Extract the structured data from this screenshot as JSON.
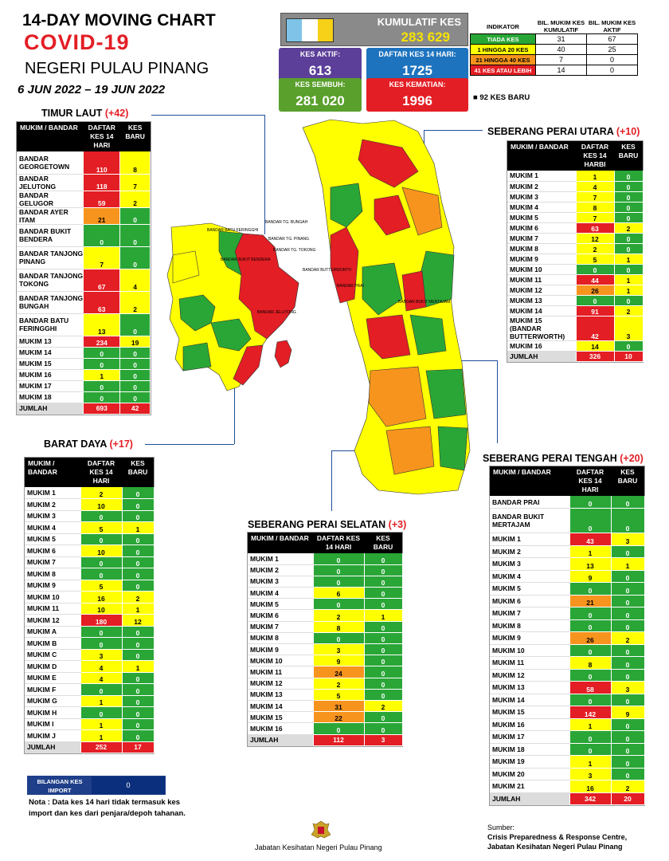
{
  "header": {
    "title_line1": "14-DAY MOVING CHART",
    "title_line2": "COVID-19",
    "state": "NEGERI PULAU PINANG",
    "date_range": "6 JUN 2022 – 19 JUN 2022"
  },
  "summary": {
    "kumulatif_label": "KUMULATIF KES",
    "kumulatif_value": "283 629",
    "aktif_label": "KES AKTIF:",
    "aktif_value": "613",
    "daftar14_label": "DAFTAR KES 14 HARI:",
    "daftar14_value": "1725",
    "sembuh_label": "KES SEMBUH:",
    "sembuh_value": "281 020",
    "kematian_label": "KES KEMATIAN:",
    "kematian_value": "1996"
  },
  "indicator": {
    "header_label": "INDIKATOR",
    "col1": "BIL. MUKIM KES KUMULATIF",
    "col2": "BIL. MUKIM KES AKTIF",
    "rows": [
      {
        "label": "TIADA KES",
        "color": "#2aa637",
        "text_color": "#ffffff",
        "kumulatif": "31",
        "aktif": "67"
      },
      {
        "label": "1 HINGGA 20 KES",
        "color": "#ffff00",
        "text_color": "#000000",
        "kumulatif": "40",
        "aktif": "25"
      },
      {
        "label": "21 HINGGA 40 KES",
        "color": "#f7941d",
        "text_color": "#000000",
        "kumulatif": "7",
        "aktif": "0"
      },
      {
        "label": "41 KES ATAU LEBIH",
        "color": "#e31e24",
        "text_color": "#ffffff",
        "kumulatif": "14",
        "aktif": "0"
      }
    ],
    "new_cases": "92 KES BARU"
  },
  "columns": {
    "mukim": "MUKIM / BANDAR",
    "daftar": "DAFTAR KES 14 HARI",
    "daftar_spu": "DAFTAR KES 14 HARBI",
    "baru": "KES BARU"
  },
  "regions": {
    "timur_laut": {
      "name": "TIMUR LAUT",
      "count": "(+42)",
      "rows": [
        [
          "BANDAR GEORGETOWN",
          "110",
          "8"
        ],
        [
          "BANDAR JELUTONG",
          "118",
          "7"
        ],
        [
          "BANDAR GELUGOR",
          "59",
          "2"
        ],
        [
          "BANDAR AYER ITAM",
          "21",
          "0"
        ],
        [
          "BANDAR BUKIT BENDERA",
          "0",
          "0"
        ],
        [
          "BANDAR TANJONG PINANG",
          "7",
          "0"
        ],
        [
          "BANDAR TANJONG TOKONG",
          "67",
          "4"
        ],
        [
          "BANDAR TANJONG BUNGAH",
          "63",
          "2"
        ],
        [
          "BANDAR BATU FERINGGHI",
          "13",
          "0"
        ],
        [
          "MUKIM 13",
          "234",
          "19"
        ],
        [
          "MUKIM 14",
          "0",
          "0"
        ],
        [
          "MUKIM 15",
          "0",
          "0"
        ],
        [
          "MUKIM 16",
          "1",
          "0"
        ],
        [
          "MUKIM 17",
          "0",
          "0"
        ],
        [
          "MUKIM 18",
          "0",
          "0"
        ]
      ],
      "total": [
        "JUMLAH",
        "693",
        "42"
      ]
    },
    "barat_daya": {
      "name": "BARAT DAYA",
      "count": "(+17)",
      "rows": [
        [
          "MUKIM 1",
          "2",
          "0"
        ],
        [
          "MUKIM 2",
          "10",
          "0"
        ],
        [
          "MUKIM 3",
          "0",
          "0"
        ],
        [
          "MUKIM 4",
          "5",
          "1"
        ],
        [
          "MUKIM 5",
          "0",
          "0"
        ],
        [
          "MUKIM 6",
          "10",
          "0"
        ],
        [
          "MUKIM 7",
          "0",
          "0"
        ],
        [
          "MUKIM 8",
          "0",
          "0"
        ],
        [
          "MUKIM 9",
          "5",
          "0"
        ],
        [
          "MUKIM 10",
          "16",
          "2"
        ],
        [
          "MUKIM 11",
          "10",
          "1"
        ],
        [
          "MUKIM 12",
          "180",
          "12"
        ],
        [
          "MUKIM A",
          "0",
          "0"
        ],
        [
          "MUKIM B",
          "0",
          "0"
        ],
        [
          "MUKIM C",
          "3",
          "0"
        ],
        [
          "MUKIM D",
          "4",
          "1"
        ],
        [
          "MUKIM E",
          "4",
          "0"
        ],
        [
          "MUKIM F",
          "0",
          "0"
        ],
        [
          "MUKIM G",
          "1",
          "0"
        ],
        [
          "MUKIM H",
          "0",
          "0"
        ],
        [
          "MUKIM I",
          "1",
          "0"
        ],
        [
          "MUKIM J",
          "1",
          "0"
        ]
      ],
      "total": [
        "JUMLAH",
        "252",
        "17"
      ]
    },
    "spu": {
      "name": "SEBERANG PERAI UTARA",
      "count": "(+10)",
      "rows": [
        [
          "MUKIM 1",
          "1",
          "0"
        ],
        [
          "MUKIM 2",
          "4",
          "0"
        ],
        [
          "MUKIM 3",
          "7",
          "0"
        ],
        [
          "MUKIM 4",
          "8",
          "0"
        ],
        [
          "MUKIM 5",
          "7",
          "0"
        ],
        [
          "MUKIM 6",
          "63",
          "2"
        ],
        [
          "MUKIM 7",
          "12",
          "0"
        ],
        [
          "MUKIM 8",
          "2",
          "0"
        ],
        [
          "MUKIM 9",
          "5",
          "1"
        ],
        [
          "MUKIM 10",
          "0",
          "0"
        ],
        [
          "MUKIM 11",
          "44",
          "1"
        ],
        [
          "MUKIM 12",
          "26",
          "1"
        ],
        [
          "MUKIM 13",
          "0",
          "0"
        ],
        [
          "MUKIM 14",
          "91",
          "2"
        ],
        [
          "MUKIM 15 (BANDAR BUTTERWORTH)",
          "42",
          "3"
        ],
        [
          "MUKIM 16",
          "14",
          "0"
        ]
      ],
      "total": [
        "JUMLAH",
        "326",
        "10"
      ]
    },
    "sps": {
      "name": "SEBERANG PERAI SELATAN",
      "count": "(+3)",
      "rows": [
        [
          "MUKIM 1",
          "0",
          "0"
        ],
        [
          "MUKIM 2",
          "0",
          "0"
        ],
        [
          "MUKIM 3",
          "0",
          "0"
        ],
        [
          "MUKIM 4",
          "6",
          "0"
        ],
        [
          "MUKIM 5",
          "0",
          "0"
        ],
        [
          "MUKIM 6",
          "2",
          "1"
        ],
        [
          "MUKIM 7",
          "8",
          "0"
        ],
        [
          "MUKIM 8",
          "0",
          "0"
        ],
        [
          "MUKIM 9",
          "3",
          "0"
        ],
        [
          "MUKIM 10",
          "9",
          "0"
        ],
        [
          "MUKIM 11",
          "24",
          "0"
        ],
        [
          "MUKIM 12",
          "2",
          "0"
        ],
        [
          "MUKIM 13",
          "5",
          "0"
        ],
        [
          "MUKIM 14",
          "31",
          "2"
        ],
        [
          "MUKIM 15",
          "22",
          "0"
        ],
        [
          "MUKIM 16",
          "0",
          "0"
        ]
      ],
      "total": [
        "JUMLAH",
        "112",
        "3"
      ]
    },
    "spt": {
      "name": "SEBERANG PERAI TENGAH",
      "count": "(+20)",
      "rows": [
        [
          "BANDAR PRAI",
          "0",
          "0"
        ],
        [
          "BANDAR BUKIT MERTAJAM",
          "0",
          "0"
        ],
        [
          "MUKIM 1",
          "43",
          "3"
        ],
        [
          "MUKIM 2",
          "1",
          "0"
        ],
        [
          "MUKIM 3",
          "13",
          "1"
        ],
        [
          "MUKIM 4",
          "9",
          "0"
        ],
        [
          "MUKIM 5",
          "0",
          "0"
        ],
        [
          "MUKIM 6",
          "21",
          "0"
        ],
        [
          "MUKIM 7",
          "0",
          "0"
        ],
        [
          "MUKIM 8",
          "0",
          "0"
        ],
        [
          "MUKIM 9",
          "26",
          "2"
        ],
        [
          "MUKIM 10",
          "0",
          "0"
        ],
        [
          "MUKIM 11",
          "8",
          "0"
        ],
        [
          "MUKIM 12",
          "0",
          "0"
        ],
        [
          "MUKIM 13",
          "58",
          "3"
        ],
        [
          "MUKIM 14",
          "0",
          "0"
        ],
        [
          "MUKIM 15",
          "142",
          "9"
        ],
        [
          "MUKIM 16",
          "1",
          "0"
        ],
        [
          "MUKIM 17",
          "0",
          "0"
        ],
        [
          "MUKIM 18",
          "0",
          "0"
        ],
        [
          "MUKIM 19",
          "1",
          "0"
        ],
        [
          "MUKIM 20",
          "3",
          "0"
        ],
        [
          "MUKIM 21",
          "16",
          "2"
        ]
      ],
      "total": [
        "JUMLAH",
        "342",
        "20"
      ]
    }
  },
  "map_labels": {
    "batu_feringghi": "BANDAR BATU FERINGGHI",
    "tg_bungah": "BANDAR TG. BUNGAH",
    "tg_pinang": "BANDAR TG. PINANG",
    "tg_tokong": "BANDAR TG. TOKONG",
    "butterworth": "BANDAR BUTTERWORTH",
    "bukit_bendera": "BANDAR BUKIT BENDERA",
    "jelutong": "BANDAR JELUTONG",
    "bandar_prai": "BANDAR PRAI",
    "bukit_mertajam": "BANDAR BUKIT MERTAJAM"
  },
  "footer": {
    "import_label": "BILANGAN KES IMPORT",
    "import_value": "0",
    "note": "Nota : Data kes 14 hari tidak termasuk kes import dan kes dari penjara/depoh tahanan.",
    "department": "Jabatan Kesihatan Negeri Pulau Pinang",
    "source_label": "Sumber:",
    "source_line1": "Crisis Preparedness & Response Centre,",
    "source_line2": "Jabatan Kesihatan Negeri Pulau Pinang"
  },
  "colors": {
    "green": "#2aa637",
    "yellow": "#ffff00",
    "orange": "#f7941d",
    "red": "#e31e24",
    "aktif_box": "#5b3f99",
    "daftar_box": "#1e73be",
    "sembuh_box": "#5aa02c",
    "kematian_box": "#e31e24",
    "connector": "#1f4e9a"
  }
}
